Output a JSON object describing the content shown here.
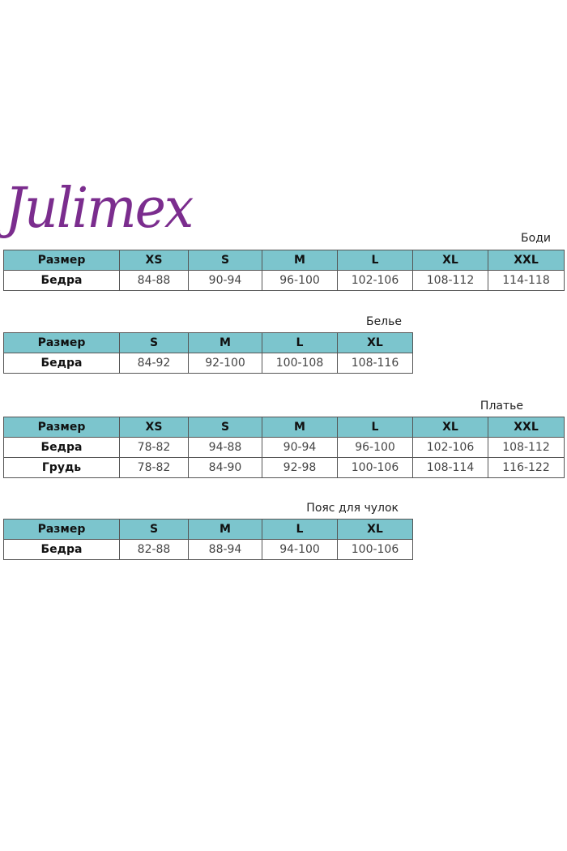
{
  "logo": {
    "text": "Julimex",
    "color": "#7b2d8e"
  },
  "header_color": "#7cc5cd",
  "tables": [
    {
      "title": "Боди",
      "header": [
        "Размер",
        "XS",
        "S",
        "M",
        "L",
        "XL",
        "XXL"
      ],
      "rows": [
        [
          "Бедра",
          "84-88",
          "90-94",
          "96-100",
          "102-106",
          "108-112",
          "114-118"
        ]
      ]
    },
    {
      "title": "Белье",
      "header": [
        "Размер",
        "S",
        "M",
        "L",
        "XL"
      ],
      "rows": [
        [
          "Бедра",
          "84-92",
          "92-100",
          "100-108",
          "108-116"
        ]
      ]
    },
    {
      "title": "Платье",
      "header": [
        "Размер",
        "XS",
        "S",
        "M",
        "L",
        "XL",
        "XXL"
      ],
      "rows": [
        [
          "Бедра",
          "78-82",
          "94-88",
          "90-94",
          "96-100",
          "102-106",
          "108-112"
        ],
        [
          "Грудь",
          "78-82",
          "84-90",
          "92-98",
          "100-106",
          "108-114",
          "116-122"
        ]
      ]
    },
    {
      "title": "Пояс для чулок",
      "header": [
        "Размер",
        "S",
        "M",
        "L",
        "XL"
      ],
      "rows": [
        [
          "Бедра",
          "82-88",
          "88-94",
          "94-100",
          "100-106"
        ]
      ]
    }
  ]
}
